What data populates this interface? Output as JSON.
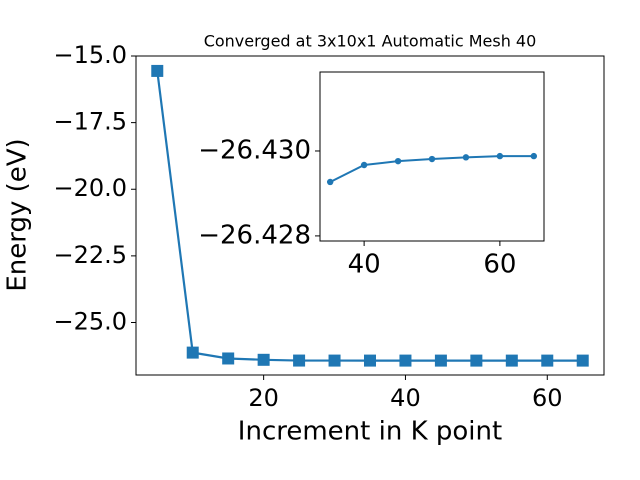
{
  "chart_data": [
    {
      "type": "line",
      "title": "Converged at 3x10x1 Automatic Mesh 40",
      "x_label": "Increment in K point",
      "y_label": "Energy (eV)",
      "x": [
        5,
        10,
        15,
        20,
        25,
        30,
        35,
        40,
        45,
        50,
        55,
        60,
        65
      ],
      "series": [
        {
          "name": "Energy",
          "color": "#1f77b4",
          "marker": "square",
          "values": [
            -15.56,
            -26.13,
            -26.35,
            -26.4,
            -26.428,
            -26.429,
            -26.42927,
            -26.42967,
            -26.42976,
            -26.42981,
            -26.42985,
            -26.42988,
            -26.42988
          ]
        }
      ],
      "xlim": [
        2,
        68
      ],
      "ylim": [
        -26.97,
        -15.0
      ],
      "xticks": [
        20,
        40,
        60
      ],
      "yticks": [
        {
          "value": -25.0,
          "label": "−25.0"
        },
        {
          "value": -22.5,
          "label": "−22.5"
        },
        {
          "value": -20.0,
          "label": "−20.0"
        },
        {
          "value": -17.5,
          "label": "−17.5"
        },
        {
          "value": -15.0,
          "label": "−15.0"
        }
      ]
    },
    {
      "type": "line",
      "x": [
        35,
        40,
        45,
        50,
        55,
        60,
        65
      ],
      "series": [
        {
          "name": "Energy",
          "color": "#1f77b4",
          "marker": "circle",
          "values": [
            -26.42927,
            -26.42967,
            -26.42976,
            -26.42981,
            -26.42985,
            -26.42988,
            -26.42988
          ]
        }
      ],
      "xlim": [
        33.5,
        66.5
      ],
      "ylim": [
        -26.42788,
        -26.43186
      ],
      "xticks": [
        40,
        60
      ],
      "yticks": [
        {
          "value": -26.428,
          "label": "−26.428"
        },
        {
          "value": -26.43,
          "label": "−26.430"
        }
      ]
    }
  ]
}
